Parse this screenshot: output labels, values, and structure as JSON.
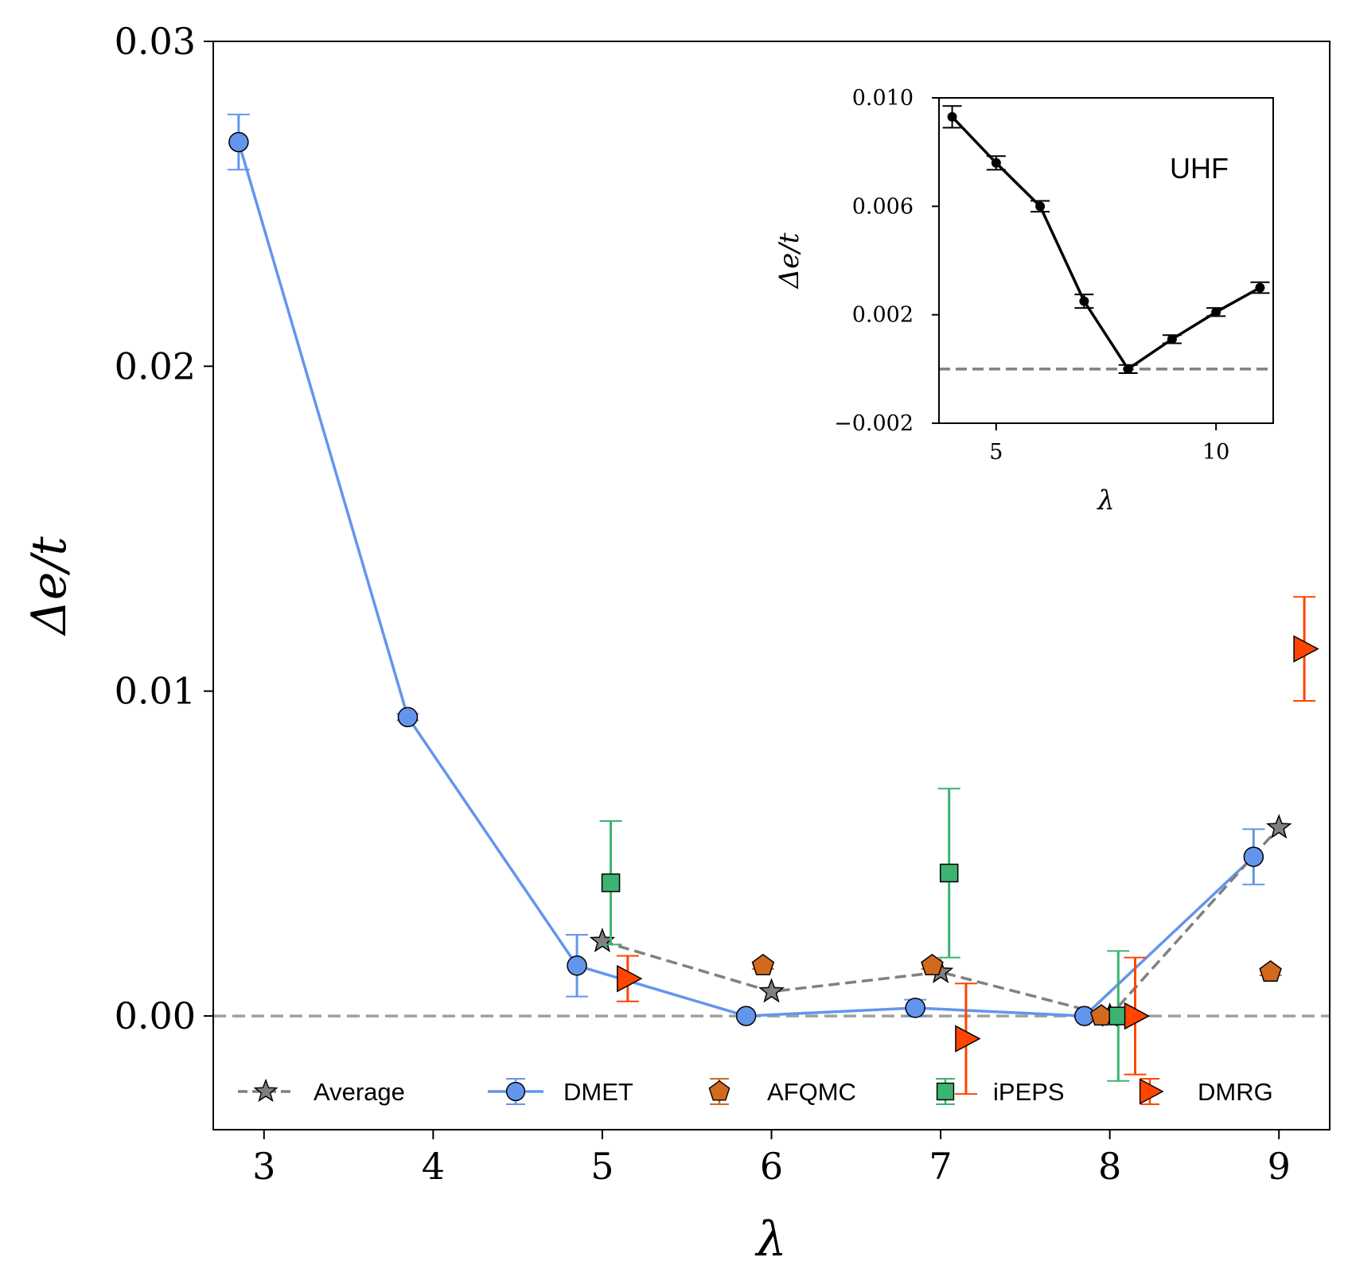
{
  "chart_data": [
    {
      "type": "line",
      "xlabel": "λ",
      "ylabel": "Δe/t",
      "xlim": [
        2.7,
        9.3
      ],
      "ylim": [
        -0.0035,
        0.03
      ],
      "xticks": [
        3,
        4,
        5,
        6,
        7,
        8,
        9
      ],
      "xtick_labels": [
        "3",
        "4",
        "5",
        "6",
        "7",
        "8",
        "9"
      ],
      "yticks": [
        0.0,
        0.01,
        0.02,
        0.03
      ],
      "ytick_labels": [
        "0.00",
        "0.01",
        "0.02",
        "0.03"
      ],
      "reference_line_y": 0.0,
      "grid": false,
      "legend_position": "bottom",
      "colors": {
        "average": "#808080",
        "dmet": "#6495ED",
        "afqmc": "#D2691E",
        "ipeps": "#3CB371",
        "dmrg": "#FF4500",
        "reference": "#A0A0A0"
      },
      "series": [
        {
          "name": "Average",
          "marker": "star",
          "connected": true,
          "x": [
            5,
            6,
            7,
            8,
            9
          ],
          "y": [
            0.0023,
            0.00075,
            0.00135,
            0.0,
            0.0058
          ]
        },
        {
          "name": "DMET",
          "marker": "circle",
          "connected": true,
          "x": [
            2.85,
            3.85,
            4.85,
            5.85,
            6.85,
            7.85,
            8.85
          ],
          "y": [
            0.0269,
            0.0092,
            0.00155,
            0.0,
            0.00025,
            0.0,
            0.0049
          ],
          "yerr": [
            0.00085,
            0.0001,
            0.00095,
            0.0,
            0.00025,
            0.0,
            0.00085
          ]
        },
        {
          "name": "AFQMC",
          "marker": "pentagon",
          "connected": false,
          "x": [
            5.95,
            6.95,
            7.95,
            8.95
          ],
          "y": [
            0.00155,
            0.00155,
            0.0,
            0.00135
          ],
          "yerr": [
            0.0001,
            0.0001,
            0.0001,
            0.0001
          ]
        },
        {
          "name": "iPEPS",
          "marker": "square",
          "connected": false,
          "x": [
            5.05,
            7.05,
            8.05
          ],
          "y": [
            0.0041,
            0.0044,
            0.0
          ],
          "yerr": [
            0.0019,
            0.0026,
            0.002
          ]
        },
        {
          "name": "DMRG",
          "marker": "triangle-right",
          "connected": false,
          "x": [
            5.15,
            7.15,
            8.15,
            9.15
          ],
          "y": [
            0.00115,
            -0.0007,
            0.0,
            0.0113
          ],
          "yerr": [
            0.0007,
            0.0017,
            0.0018,
            0.0016
          ]
        }
      ]
    },
    {
      "type": "line",
      "inset": true,
      "annotation": "UHF",
      "xlabel": "λ",
      "ylabel": "Δe/t",
      "xlim": [
        3.7,
        11.3
      ],
      "ylim": [
        -0.002,
        0.01
      ],
      "xticks": [
        5,
        10
      ],
      "xtick_labels": [
        "5",
        "10"
      ],
      "yticks": [
        -0.002,
        0.002,
        0.006,
        0.01
      ],
      "ytick_labels": [
        "−0.002",
        "0.002",
        "0.006",
        "0.010"
      ],
      "reference_line_y": 0.0,
      "colors": {
        "line": "#000000",
        "reference": "#808080"
      },
      "series": [
        {
          "x": [
            4,
            5,
            6,
            7,
            8,
            9,
            10,
            11
          ],
          "y": [
            0.0093,
            0.0076,
            0.006,
            0.0025,
            0.0,
            0.0011,
            0.0021,
            0.003
          ],
          "yerr": [
            0.0004,
            0.00025,
            0.0002,
            0.00025,
            0.00015,
            0.00015,
            0.00015,
            0.0002
          ]
        }
      ]
    }
  ]
}
